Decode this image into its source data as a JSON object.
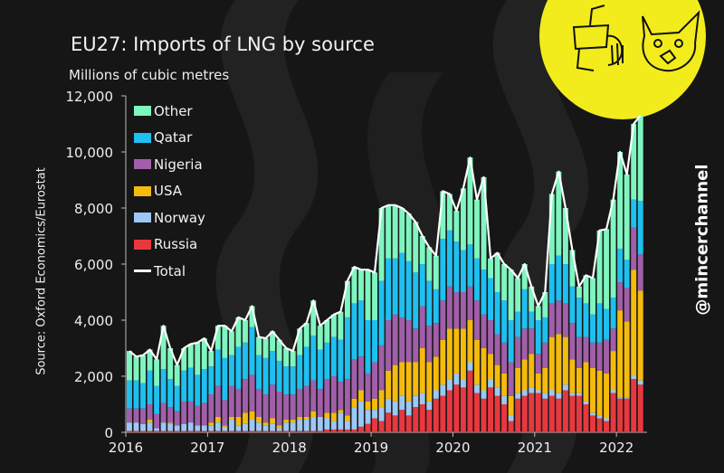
{
  "chart_data": {
    "type": "bar",
    "stacked": true,
    "title": "EU27: Imports of LNG by source",
    "ylabel": "Millions of cubic metres",
    "source": "Source: Oxford Economics/Eurostat",
    "ylim": [
      0,
      12000
    ],
    "yticks": [
      "0",
      "2,000",
      "4,000",
      "6,000",
      "8,000",
      "10,000",
      "12,000"
    ],
    "xticks": [
      "2016",
      "2017",
      "2018",
      "2019",
      "2020",
      "2021",
      "2022"
    ],
    "x_start": "2016-01",
    "x_end": "2022-04",
    "frequency": "monthly",
    "legend_position": "top-left",
    "grid": false,
    "series": [
      {
        "name": "Russia",
        "color": "#e8383f",
        "values": [
          50,
          50,
          50,
          50,
          50,
          50,
          50,
          50,
          50,
          50,
          50,
          50,
          50,
          50,
          50,
          50,
          50,
          50,
          50,
          50,
          50,
          50,
          50,
          50,
          50,
          50,
          50,
          50,
          50,
          100,
          100,
          100,
          100,
          100,
          200,
          300,
          500,
          400,
          700,
          600,
          800,
          600,
          900,
          1000,
          800,
          1200,
          1300,
          1500,
          1700,
          1600,
          2200,
          1400,
          1200,
          1600,
          1300,
          1000,
          400,
          1200,
          1300,
          1400,
          1400,
          1200,
          1300,
          1200,
          1500,
          1300,
          1300,
          1000,
          600,
          500,
          400,
          1400,
          1200,
          1200,
          1900,
          1700
        ]
      },
      {
        "name": "Norway",
        "color": "#9cc8f5",
        "values": [
          300,
          300,
          250,
          300,
          100,
          300,
          250,
          200,
          250,
          300,
          200,
          200,
          200,
          300,
          150,
          400,
          200,
          250,
          400,
          300,
          200,
          250,
          100,
          300,
          300,
          400,
          400,
          500,
          500,
          400,
          300,
          600,
          300,
          800,
          900,
          500,
          300,
          500,
          500,
          500,
          500,
          500,
          400,
          400,
          300,
          300,
          400,
          400,
          400,
          300,
          300,
          300,
          300,
          300,
          300,
          300,
          200,
          200,
          200,
          200,
          100,
          200,
          200,
          200,
          200,
          100,
          100,
          100,
          100,
          100,
          100,
          100,
          50,
          50,
          100,
          150
        ]
      },
      {
        "name": "USA",
        "color": "#f5bb0c",
        "values": [
          0,
          0,
          0,
          100,
          0,
          0,
          50,
          0,
          0,
          0,
          0,
          0,
          100,
          200,
          50,
          100,
          300,
          400,
          300,
          200,
          100,
          200,
          100,
          100,
          100,
          100,
          100,
          200,
          0,
          200,
          300,
          100,
          200,
          300,
          400,
          300,
          400,
          600,
          1000,
          1300,
          1200,
          1400,
          1200,
          1600,
          1400,
          1200,
          1600,
          1800,
          1600,
          1800,
          1500,
          1600,
          1500,
          900,
          800,
          800,
          700,
          900,
          1100,
          1200,
          600,
          900,
          1900,
          2100,
          1700,
          1200,
          900,
          1400,
          1600,
          1600,
          1600,
          1400,
          3100,
          2700,
          3800,
          3200
        ]
      },
      {
        "name": "Nigeria",
        "color": "#a05fa8",
        "values": [
          500,
          500,
          550,
          550,
          500,
          700,
          550,
          500,
          800,
          750,
          700,
          800,
          1000,
          1100,
          900,
          1100,
          1000,
          1200,
          1300,
          1000,
          1000,
          1200,
          1200,
          900,
          900,
          1000,
          1100,
          1100,
          1000,
          1200,
          1300,
          1000,
          1300,
          1400,
          1200,
          1000,
          1300,
          1600,
          1800,
          1800,
          1600,
          1500,
          1200,
          1500,
          1300,
          1200,
          1400,
          1500,
          1300,
          1300,
          1200,
          1400,
          1200,
          1200,
          1100,
          1100,
          1200,
          1100,
          1100,
          900,
          700,
          900,
          1200,
          1200,
          1200,
          1300,
          1100,
          900,
          900,
          1000,
          1200,
          800,
          1000,
          1200,
          1500,
          1300
        ]
      },
      {
        "name": "Qatar",
        "color": "#1ec0f0",
        "values": [
          1000,
          1000,
          900,
          1200,
          1000,
          1200,
          1000,
          900,
          1100,
          1200,
          1100,
          1200,
          1000,
          1300,
          1500,
          1100,
          1500,
          1300,
          1700,
          1200,
          1300,
          1200,
          1100,
          1000,
          1000,
          1200,
          1400,
          1600,
          1400,
          1300,
          1400,
          1500,
          2200,
          2000,
          2000,
          1900,
          1500,
          2300,
          2200,
          2000,
          2300,
          2100,
          2000,
          1500,
          1600,
          1200,
          2200,
          2000,
          1800,
          1500,
          1500,
          1500,
          1600,
          1500,
          1500,
          1500,
          1500,
          900,
          1400,
          600,
          1200,
          900,
          1400,
          1600,
          1400,
          1300,
          1400,
          1200,
          1000,
          1400,
          1100,
          1100,
          1200,
          1000,
          1000,
          1900
        ]
      },
      {
        "name": "Other",
        "color": "#7ff5c0",
        "values": [
          1050,
          850,
          1000,
          750,
          950,
          1550,
          1100,
          750,
          800,
          850,
          1150,
          1100,
          550,
          850,
          1150,
          850,
          1050,
          800,
          750,
          650,
          700,
          700,
          750,
          650,
          550,
          950,
          850,
          1250,
          850,
          800,
          800,
          1000,
          1300,
          1300,
          1100,
          1800,
          1700,
          2600,
          1900,
          1900,
          1600,
          1700,
          1800,
          1000,
          1200,
          1200,
          1700,
          1300,
          1100,
          2200,
          3100,
          2100,
          3300,
          700,
          1400,
          1300,
          1800,
          1200,
          900,
          900,
          500,
          900,
          2500,
          3000,
          2000,
          1300,
          400,
          1000,
          1300,
          2600,
          2850,
          3500,
          3450,
          3050,
          2700,
          3050
        ]
      }
    ],
    "total": {
      "name": "Total",
      "color": "#ffffff",
      "values": [
        2900,
        2700,
        2750,
        2950,
        2600,
        3800,
        3000,
        2400,
        3000,
        3150,
        3200,
        3350,
        2900,
        3800,
        3800,
        3600,
        4100,
        4000,
        4500,
        3400,
        3350,
        3600,
        3300,
        3000,
        2900,
        3700,
        3900,
        4700,
        3800,
        4000,
        4200,
        4300,
        5400,
        5900,
        5800,
        5800,
        5700,
        8000,
        8100,
        8100,
        8000,
        7800,
        7500,
        7000,
        6600,
        6300,
        8600,
        8500,
        7900,
        8700,
        9800,
        8300,
        9100,
        6200,
        6400,
        6000,
        5800,
        5500,
        6000,
        5200,
        4500,
        5000,
        8500,
        9300,
        8000,
        6500,
        5200,
        5600,
        5500,
        7200,
        7250,
        8300,
        10000,
        9200,
        11000,
        11300
      ]
    },
    "legend_order": [
      "Other",
      "Qatar",
      "Nigeria",
      "USA",
      "Norway",
      "Russia",
      "Total"
    ]
  },
  "branding": {
    "handle": "@mincerchannel",
    "logo": "meat grinder and cat logo",
    "logo_color": "#f2ec1c"
  },
  "background": "#161616"
}
